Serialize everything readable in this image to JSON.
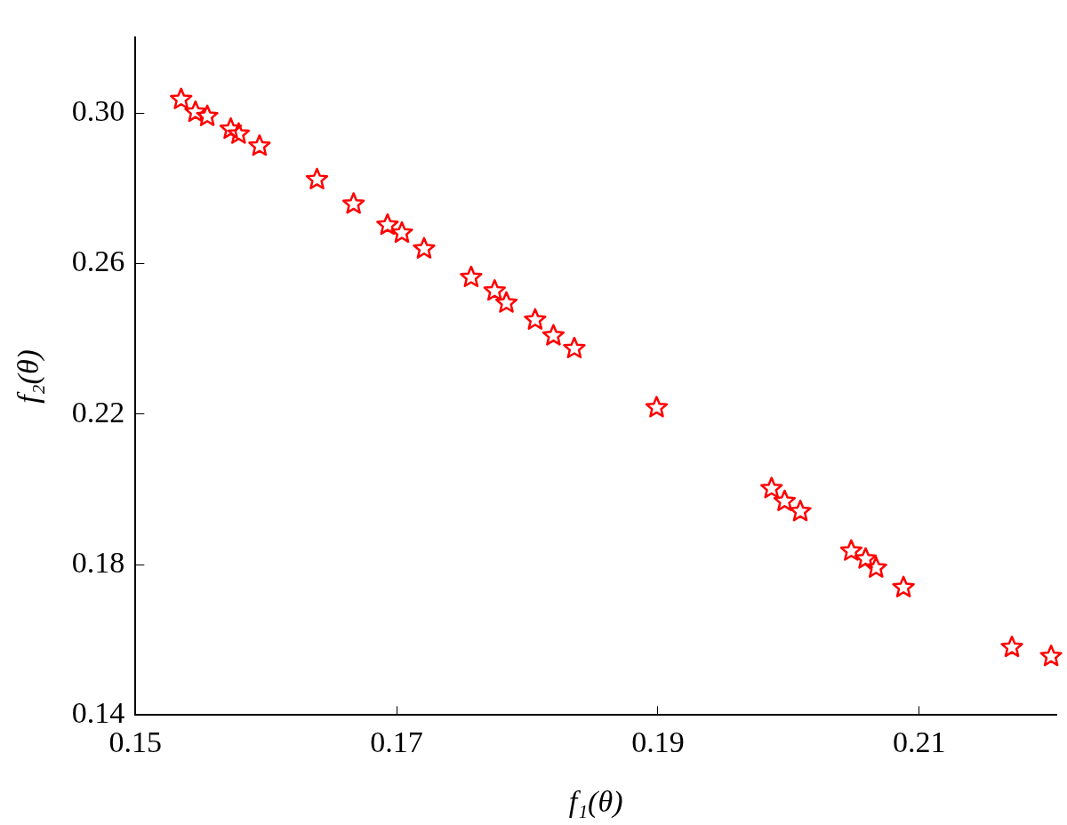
{
  "chart_data": {
    "type": "scatter",
    "xlabel": "f₁(θ)",
    "ylabel": "f₂(θ)",
    "x": [
      0.1535,
      0.1546,
      0.1555,
      0.1573,
      0.1579,
      0.1595,
      0.1639,
      0.1667,
      0.1693,
      0.1704,
      0.1721,
      0.1757,
      0.1775,
      0.1784,
      0.1806,
      0.182,
      0.1836,
      0.1899,
      0.1987,
      0.1997,
      0.2009,
      0.2048,
      0.2059,
      0.2067,
      0.2088,
      0.2171,
      0.2201
    ],
    "series": [
      {
        "color": "#ff0000",
        "values": [
          0.3036,
          0.3002,
          0.2991,
          0.2957,
          0.2944,
          0.2912,
          0.2823,
          0.2758,
          0.2702,
          0.2681,
          0.2639,
          0.2563,
          0.2527,
          0.2495,
          0.245,
          0.2408,
          0.2374,
          0.2217,
          0.2002,
          0.1968,
          0.1941,
          0.1836,
          0.1815,
          0.1791,
          0.1739,
          0.158,
          0.1556
        ]
      }
    ],
    "xlim": [
      0.15,
      0.2205
    ],
    "xticks": [
      0.15,
      0.17,
      0.19,
      0.21
    ],
    "ylim": [
      0.14,
      0.32
    ],
    "yticks": [
      0.14,
      0.18,
      0.22,
      0.26,
      {
        "value": 0.3,
        "label": "0.30"
      }
    ],
    "marker": "star"
  }
}
